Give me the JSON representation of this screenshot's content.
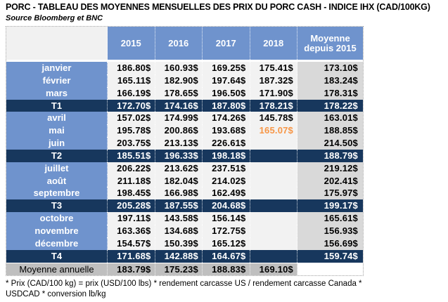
{
  "page": {
    "title": "PORC - TABLEAU DES MOYENNES MENSUELLES DES PRIX DU PORC CASH - INDICE IHX (CAD/100KG)",
    "source": "Source Bloomberg et BNC",
    "footnote_line1": "* Prix (CAD/100 kg) = prix (USD/100 lbs) * rendement carcasse US / rendement carcasse Canada *",
    "footnote_line2": "USDCAD * conversion lb/kg"
  },
  "colors": {
    "header_blue": "#6f93cd",
    "quarter_navy": "#17375d",
    "month_value_bg": "#f2f2f2",
    "avg_column_bg": "#d9d9d9",
    "annual_row_bg": "#bfbfbf",
    "highlight_orange": "#f79646"
  },
  "chart_data": {
    "type": "table",
    "title": "PORC - TABLEAU DES MOYENNES MENSUELLES DES PRIX DU PORC CASH - INDICE IHX (CAD/100KG)",
    "source": "Source Bloomberg et BNC",
    "corner_label": "",
    "columns": [
      "2015",
      "2016",
      "2017",
      "2018",
      "Moyenne depuis 2015"
    ],
    "rows": [
      {
        "label": "janvier",
        "type": "month",
        "values": [
          "186.80$",
          "160.93$",
          "169.25$",
          "175.41$",
          "173.10$"
        ]
      },
      {
        "label": "février",
        "type": "month",
        "values": [
          "165.11$",
          "182.90$",
          "197.64$",
          "187.32$",
          "183.24$"
        ]
      },
      {
        "label": "mars",
        "type": "month",
        "values": [
          "166.19$",
          "178.65$",
          "196.50$",
          "171.90$",
          "178.31$"
        ]
      },
      {
        "label": "T1",
        "type": "quarter",
        "values": [
          "172.70$",
          "174.16$",
          "187.80$",
          "178.21$",
          "178.22$"
        ]
      },
      {
        "label": "avril",
        "type": "month",
        "values": [
          "157.02$",
          "174.99$",
          "174.26$",
          "145.78$",
          "163.01$"
        ]
      },
      {
        "label": "mai",
        "type": "month",
        "values": [
          "195.78$",
          "200.86$",
          "193.68$",
          "165.07$",
          "188.85$"
        ],
        "highlight_col": 3
      },
      {
        "label": "juin",
        "type": "month",
        "values": [
          "203.75$",
          "213.13$",
          "226.61$",
          "",
          "214.50$"
        ]
      },
      {
        "label": "T2",
        "type": "quarter",
        "values": [
          "185.51$",
          "196.33$",
          "198.18$",
          "",
          "188.79$"
        ]
      },
      {
        "label": "juillet",
        "type": "month",
        "values": [
          "206.22$",
          "213.62$",
          "237.51$",
          "",
          "219.12$"
        ]
      },
      {
        "label": "août",
        "type": "month",
        "values": [
          "211.18$",
          "182.04$",
          "214.02$",
          "",
          "202.41$"
        ]
      },
      {
        "label": "septembre",
        "type": "month",
        "values": [
          "198.45$",
          "166.98$",
          "162.49$",
          "",
          "175.97$"
        ]
      },
      {
        "label": "T3",
        "type": "quarter",
        "values": [
          "205.28$",
          "187.55$",
          "204.68$",
          "",
          "199.17$"
        ]
      },
      {
        "label": "octobre",
        "type": "month",
        "values": [
          "197.11$",
          "143.58$",
          "156.14$",
          "",
          "165.61$"
        ]
      },
      {
        "label": "novembre",
        "type": "month",
        "values": [
          "163.36$",
          "134.68$",
          "172.75$",
          "",
          "156.93$"
        ]
      },
      {
        "label": "décembre",
        "type": "month",
        "values": [
          "154.57$",
          "150.39$",
          "165.12$",
          "",
          "156.69$"
        ]
      },
      {
        "label": "T4",
        "type": "quarter",
        "values": [
          "171.68$",
          "142.88$",
          "164.67$",
          "",
          "159.74$"
        ]
      },
      {
        "label": "Moyenne annuelle",
        "type": "annual",
        "values": [
          "183.79$",
          "175.23$",
          "188.83$",
          "169.10$",
          ""
        ]
      }
    ],
    "footnote": "* Prix (CAD/100 kg) = prix (USD/100 lbs) * rendement carcasse US / rendement carcasse Canada * USDCAD * conversion lb/kg"
  }
}
